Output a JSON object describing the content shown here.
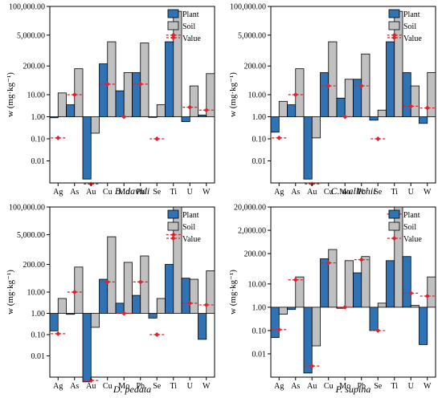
{
  "chart_data": [
    {
      "type": "bar",
      "title": "B. davidi",
      "ylabel": "w (mg·kg⁻¹)",
      "ylim": [
        0.001,
        100000
      ],
      "yscale": "log",
      "yticks": [
        0.01,
        0.1,
        1,
        10,
        200,
        5000,
        100000
      ],
      "ytick_labels": [
        "0.01",
        "0.10",
        "1.00",
        "10.00",
        "200.00",
        "5,000.00",
        "100,000.00"
      ],
      "categories": [
        "Ag",
        "As",
        "Au",
        "Cu",
        "Mo",
        "Pb",
        "Se",
        "Ti",
        "U",
        "W"
      ],
      "legend": [
        "Plant",
        "Soil",
        "Value"
      ],
      "legend_position": "top-right",
      "series": [
        {
          "name": "Plant",
          "values": [
            0.9,
            3.5,
            0.0015,
            250,
            15,
            100,
            1,
            2500,
            0.6,
            1.2
          ]
        },
        {
          "name": "Soil",
          "values": [
            12,
            150,
            0.18,
            2500,
            100,
            2200,
            3.5,
            60000,
            25,
            90
          ]
        },
        {
          "name": "Value",
          "values": [
            0.11,
            10,
            0.0009,
            30,
            1,
            30,
            0.1,
            5000,
            2.7,
            2
          ]
        }
      ]
    },
    {
      "type": "bar",
      "title": "C. wallichii",
      "ylabel": "w (mg·kg⁻¹)",
      "ylim": [
        0.001,
        100000
      ],
      "yscale": "log",
      "yticks": [
        0.01,
        0.1,
        1,
        10,
        200,
        5000,
        100000
      ],
      "ytick_labels": [
        "0.01",
        "0.10",
        "1.00",
        "10.00",
        "200.00",
        "5,000.00",
        "100,000.00"
      ],
      "categories": [
        "Ag",
        "As",
        "Au",
        "Cu",
        "Mo",
        "Pb",
        "Se",
        "Ti",
        "U",
        "W"
      ],
      "legend": [
        "Plant",
        "Soil",
        "Value"
      ],
      "legend_position": "top-right",
      "series": [
        {
          "name": "Plant",
          "values": [
            0.2,
            3.5,
            0.0015,
            100,
            7,
            50,
            0.7,
            2500,
            100,
            0.5
          ]
        },
        {
          "name": "Soil",
          "values": [
            5,
            150,
            0.11,
            2500,
            50,
            700,
            2,
            60000,
            25,
            100
          ]
        },
        {
          "name": "Value",
          "values": [
            0.11,
            10,
            0.0009,
            25,
            1,
            25,
            0.1,
            5000,
            3,
            2.5
          ]
        }
      ]
    },
    {
      "type": "bar",
      "title": "D. pedata",
      "ylabel": "w (mg·kg⁻¹)",
      "ylim": [
        0.001,
        100000
      ],
      "yscale": "log",
      "yticks": [
        0.01,
        0.1,
        1,
        10,
        200,
        5000,
        100000
      ],
      "ytick_labels": [
        "0.01",
        "0.10",
        "1.00",
        "10.00",
        "200.00",
        "5,000.00",
        "100,000.00"
      ],
      "categories": [
        "Ag",
        "As",
        "Au",
        "Cu",
        "Mo",
        "Pb",
        "Se",
        "Ti",
        "U",
        "W"
      ],
      "legend": [
        "Plant",
        "Soil",
        "Value"
      ],
      "legend_position": "top-right",
      "series": [
        {
          "name": "Plant",
          "values": [
            0.15,
            0.9,
            0.0006,
            40,
            3,
            7,
            0.6,
            200,
            45,
            0.06
          ]
        },
        {
          "name": "Soil",
          "values": [
            5,
            150,
            0.22,
            4000,
            250,
            500,
            5,
            100000,
            40,
            100
          ]
        },
        {
          "name": "Value",
          "values": [
            0.11,
            10,
            0.0007,
            30,
            1,
            30,
            0.1,
            5000,
            3,
            2.5
          ]
        }
      ]
    },
    {
      "type": "bar",
      "title": "P. supina",
      "ylabel": "w (mg·kg⁻¹)",
      "ylim": [
        0.001,
        20000
      ],
      "yscale": "log",
      "yticks": [
        0.01,
        0.1,
        1,
        10,
        200,
        2000,
        20000
      ],
      "ytick_labels": [
        "0.01",
        "0.10",
        "1.00",
        "10.00",
        "200.00",
        "2,000.00",
        "20,000.00"
      ],
      "categories": [
        "Ag",
        "As",
        "Au",
        "Cu",
        "Mo",
        "Pb",
        "Se",
        "Ti",
        "U",
        "W"
      ],
      "legend": [
        "Plant",
        "Soil",
        "Value"
      ],
      "legend_position": "top-right",
      "series": [
        {
          "name": "Plant",
          "values": [
            0.05,
            0.8,
            0.0015,
            120,
            0.9,
            30,
            0.1,
            100,
            150,
            0.025
          ]
        },
        {
          "name": "Soil",
          "values": [
            0.5,
            20,
            0.022,
            300,
            100,
            150,
            1.5,
            20000,
            1.2,
            20
          ]
        },
        {
          "name": "Value",
          "values": [
            0.11,
            15,
            0.003,
            80,
            1,
            110,
            0.1,
            10000,
            4,
            3
          ]
        }
      ]
    }
  ],
  "colors": {
    "plant": "#2f73b5",
    "soil": "#c0c0c0",
    "value": "#e0202a",
    "stroke": "#000000"
  }
}
